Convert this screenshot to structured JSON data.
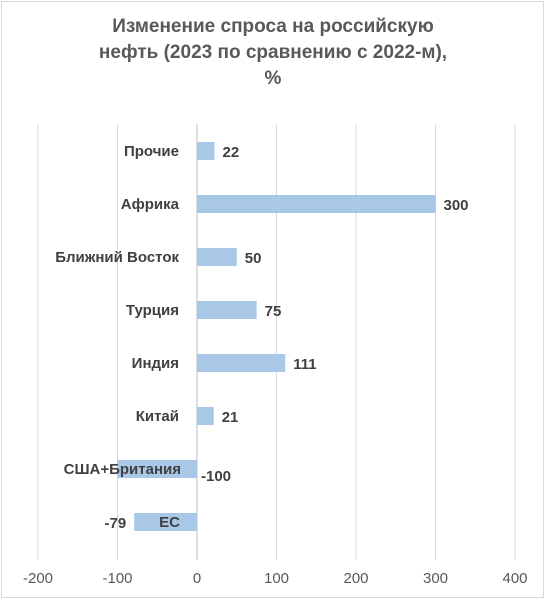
{
  "title": {
    "line1": "Изменение спроса на российскую",
    "line2": "нефть (2023 по сравнению с 2022-м),",
    "line3": "%"
  },
  "colors": {
    "bar": "#a9c8e8",
    "grid": "#d9d9d9",
    "axis": "#bfbfbf"
  },
  "chart_data": {
    "type": "bar",
    "orientation": "horizontal",
    "title": "Изменение спроса на российскую нефть (2023 по сравнению с 2022-м), %",
    "categories": [
      "Прочие",
      "Африка",
      "Ближний Восток",
      "Турция",
      "Индия",
      "Китай",
      "США+Британия",
      "ЕС"
    ],
    "values": [
      22,
      300,
      50,
      75,
      111,
      21,
      -100,
      -79
    ],
    "data_labels": [
      "22",
      "300",
      "50",
      "75",
      "111",
      "21",
      "-100",
      "-79"
    ],
    "xlim": [
      -200,
      400
    ],
    "xticks": [
      -200,
      -100,
      0,
      100,
      200,
      300,
      400
    ],
    "xtick_labels": [
      "-200",
      "-100",
      "0",
      "100",
      "200",
      "300",
      "400"
    ],
    "grid": "vertical",
    "legend": "none",
    "xlabel": "",
    "ylabel": ""
  }
}
